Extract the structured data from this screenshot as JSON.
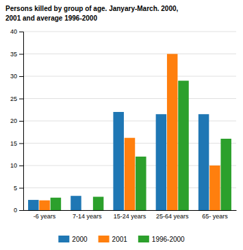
{
  "chart_data": {
    "type": "bar",
    "title": "Persons killed by group of age. Janyary-March. 2000,",
    "subtitle": "2001 and average 1996-2000",
    "categories": [
      "-6 years",
      "7-14 years",
      "15-24 years",
      "25-64 years",
      "65- years"
    ],
    "series": [
      {
        "name": "2000",
        "values": [
          2.3,
          3.2,
          22.0,
          21.5,
          21.5
        ]
      },
      {
        "name": "2001",
        "values": [
          2.2,
          0.0,
          16.2,
          35.0,
          10.0
        ]
      },
      {
        "name": "1996-2000",
        "values": [
          2.8,
          3.0,
          12.0,
          29.0,
          16.0
        ]
      }
    ],
    "ylim": [
      0,
      40
    ],
    "yticks": [
      0,
      5,
      10,
      15,
      20,
      25,
      30,
      35,
      40
    ],
    "grid": true,
    "legend": "bottom"
  }
}
